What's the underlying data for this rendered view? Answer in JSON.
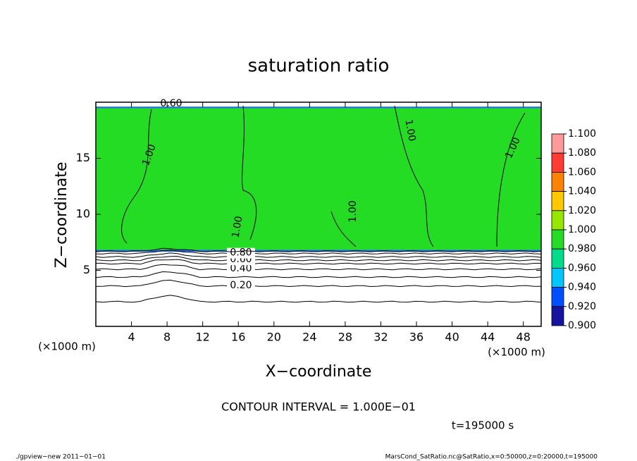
{
  "chart_data": {
    "type": "contour",
    "title": "saturation ratio",
    "x_label": "X−coordinate",
    "y_label": "Z−coordinate",
    "x_unit": "(×1000 m)",
    "y_unit": "(×1000 m)",
    "xlim": [
      0,
      50
    ],
    "ylim": [
      0,
      20
    ],
    "xticks": [
      4,
      8,
      12,
      16,
      20,
      24,
      28,
      32,
      36,
      40,
      44,
      48
    ],
    "yticks": [
      5,
      10,
      15
    ],
    "field": {
      "value": 0.99,
      "bottom": 6.8,
      "top": 19.6
    },
    "contours": [
      {
        "level": 0.1,
        "z": 2.2
      },
      {
        "level": 0.2,
        "z": 3.6,
        "label": "0.20"
      },
      {
        "level": 0.3,
        "z": 4.4
      },
      {
        "level": 0.4,
        "z": 5.1,
        "label": "0.40"
      },
      {
        "level": 0.5,
        "z": 5.6
      },
      {
        "level": 0.6,
        "z": 5.9,
        "label": "0.60"
      },
      {
        "level": 0.7,
        "z": 6.2
      },
      {
        "level": 0.8,
        "z": 6.5,
        "label": "0.80"
      },
      {
        "level": 0.9,
        "z": 6.7
      }
    ],
    "annotations": [
      {
        "level": 1.0,
        "label": "1.00"
      },
      {
        "level": 1.0,
        "label": "1.00"
      },
      {
        "level": 1.0,
        "label": "1.00"
      },
      {
        "level": 1.0,
        "label": "1.00"
      },
      {
        "level": 1.0,
        "label": "1.00"
      },
      {
        "level": 0.6,
        "label": "0.60"
      }
    ],
    "colorbar": {
      "ticks": [
        {
          "value": 1.1,
          "label": "1.100"
        },
        {
          "value": 1.08,
          "label": "1.080"
        },
        {
          "value": 1.06,
          "label": "1.060"
        },
        {
          "value": 1.04,
          "label": "1.040"
        },
        {
          "value": 1.02,
          "label": "1.020"
        },
        {
          "value": 1.0,
          "label": "1.000"
        },
        {
          "value": 0.98,
          "label": "0.980"
        },
        {
          "value": 0.96,
          "label": "0.960"
        },
        {
          "value": 0.94,
          "label": "0.940"
        },
        {
          "value": 0.92,
          "label": "0.920"
        },
        {
          "value": 0.9,
          "label": "0.900"
        }
      ],
      "colors": [
        "#ff9a9a",
        "#ff3c32",
        "#ff8200",
        "#ffc800",
        "#96e600",
        "#23dc23",
        "#00dc8c",
        "#00c8ff",
        "#0050ff",
        "#1414a0"
      ]
    },
    "contour_interval": "CONTOUR INTERVAL = 1.000E−01",
    "time": "t=195000 s",
    "footer_left": "./gpview−new   2011−01−01",
    "footer_right": "MarsCond_SatRatio.nc@SatRatio,x=0:50000,z=0:20000,t=195000"
  }
}
